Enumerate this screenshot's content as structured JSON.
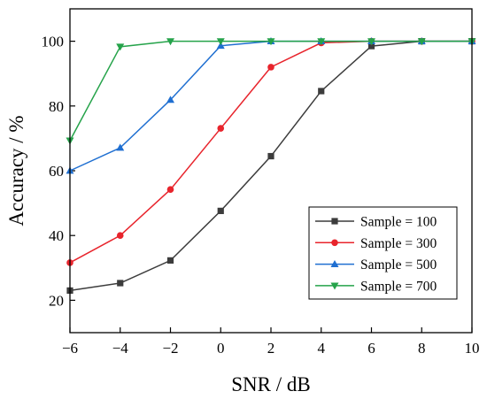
{
  "chart_data": {
    "type": "line",
    "xlabel": "SNR / dB",
    "ylabel": "Accuracy / %",
    "xlim": [
      -6,
      10
    ],
    "ylim": [
      10,
      110
    ],
    "xticks": [
      -6,
      -4,
      -2,
      0,
      2,
      4,
      6,
      8,
      10
    ],
    "xtick_labels": [
      "−6",
      "−4",
      "−2",
      "0",
      "2",
      "4",
      "6",
      "8",
      "10"
    ],
    "yticks": [
      20,
      40,
      60,
      80,
      100
    ],
    "ytick_labels": [
      "20",
      "40",
      "60",
      "80",
      "100"
    ],
    "grid": false,
    "legend_position": "lower-right",
    "x": [
      -6,
      -4,
      -2,
      0,
      2,
      4,
      6,
      8,
      10
    ],
    "series": [
      {
        "name": "Sample = 100",
        "color": "#3c3c3c",
        "marker": "square",
        "values": [
          23.0,
          25.3,
          32.3,
          47.6,
          64.5,
          84.6,
          98.5,
          100,
          100
        ]
      },
      {
        "name": "Sample = 300",
        "color": "#e8242c",
        "marker": "circle",
        "values": [
          31.6,
          40.0,
          54.2,
          73.1,
          92.0,
          99.5,
          100,
          100,
          100
        ]
      },
      {
        "name": "Sample = 500",
        "color": "#1f6fd1",
        "marker": "triangle-up",
        "values": [
          60.0,
          67.1,
          81.9,
          98.6,
          100,
          100,
          100,
          100,
          100
        ]
      },
      {
        "name": "Sample = 700",
        "color": "#25a34a",
        "marker": "triangle-down",
        "values": [
          69.3,
          98.3,
          100,
          100,
          100,
          100,
          100,
          100,
          100
        ]
      }
    ]
  }
}
